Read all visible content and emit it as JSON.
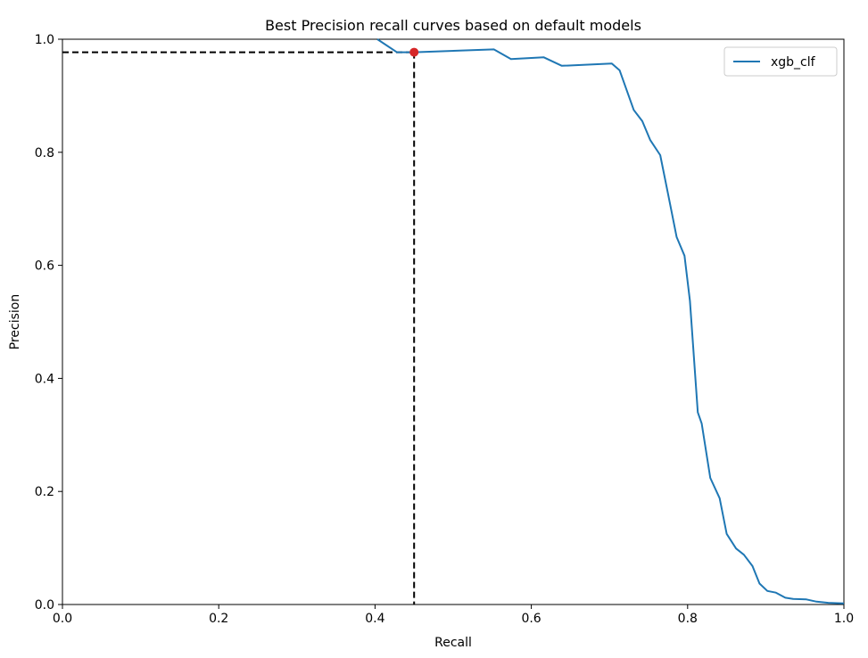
{
  "chart_data": {
    "type": "line",
    "title": "Best Precision recall curves based on default models",
    "xlabel": "Recall",
    "ylabel": "Precision",
    "xlim": [
      0.0,
      1.0
    ],
    "ylim": [
      0.0,
      1.0
    ],
    "xticks": [
      "0.0",
      "0.2",
      "0.4",
      "0.6",
      "0.8",
      "1.0"
    ],
    "yticks": [
      "0.0",
      "0.2",
      "0.4",
      "0.6",
      "0.8",
      "1.0"
    ],
    "grid": false,
    "legend_position": "top-right",
    "series": [
      {
        "name": "xgb_clf",
        "color": "#1f77b4",
        "x": [
          0.403,
          0.428,
          0.45,
          0.552,
          0.574,
          0.616,
          0.639,
          0.703,
          0.713,
          0.731,
          0.742,
          0.752,
          0.765,
          0.775,
          0.786,
          0.796,
          0.803,
          0.813,
          0.818,
          0.829,
          0.841,
          0.85,
          0.862,
          0.872,
          0.883,
          0.892,
          0.902,
          0.913,
          0.925,
          0.935,
          0.952,
          0.965,
          0.98,
          1.0
        ],
        "y": [
          1.0,
          0.977,
          0.977,
          0.982,
          0.965,
          0.968,
          0.953,
          0.957,
          0.945,
          0.875,
          0.855,
          0.822,
          0.795,
          0.726,
          0.65,
          0.617,
          0.537,
          0.34,
          0.32,
          0.224,
          0.188,
          0.125,
          0.099,
          0.088,
          0.068,
          0.037,
          0.024,
          0.021,
          0.012,
          0.01,
          0.009,
          0.005,
          0.003,
          0.002
        ]
      }
    ],
    "best_point": {
      "x": 0.45,
      "y": 0.977,
      "color": "#d62728"
    },
    "guide_lines": {
      "color": "#000000",
      "style": "dashed"
    }
  }
}
